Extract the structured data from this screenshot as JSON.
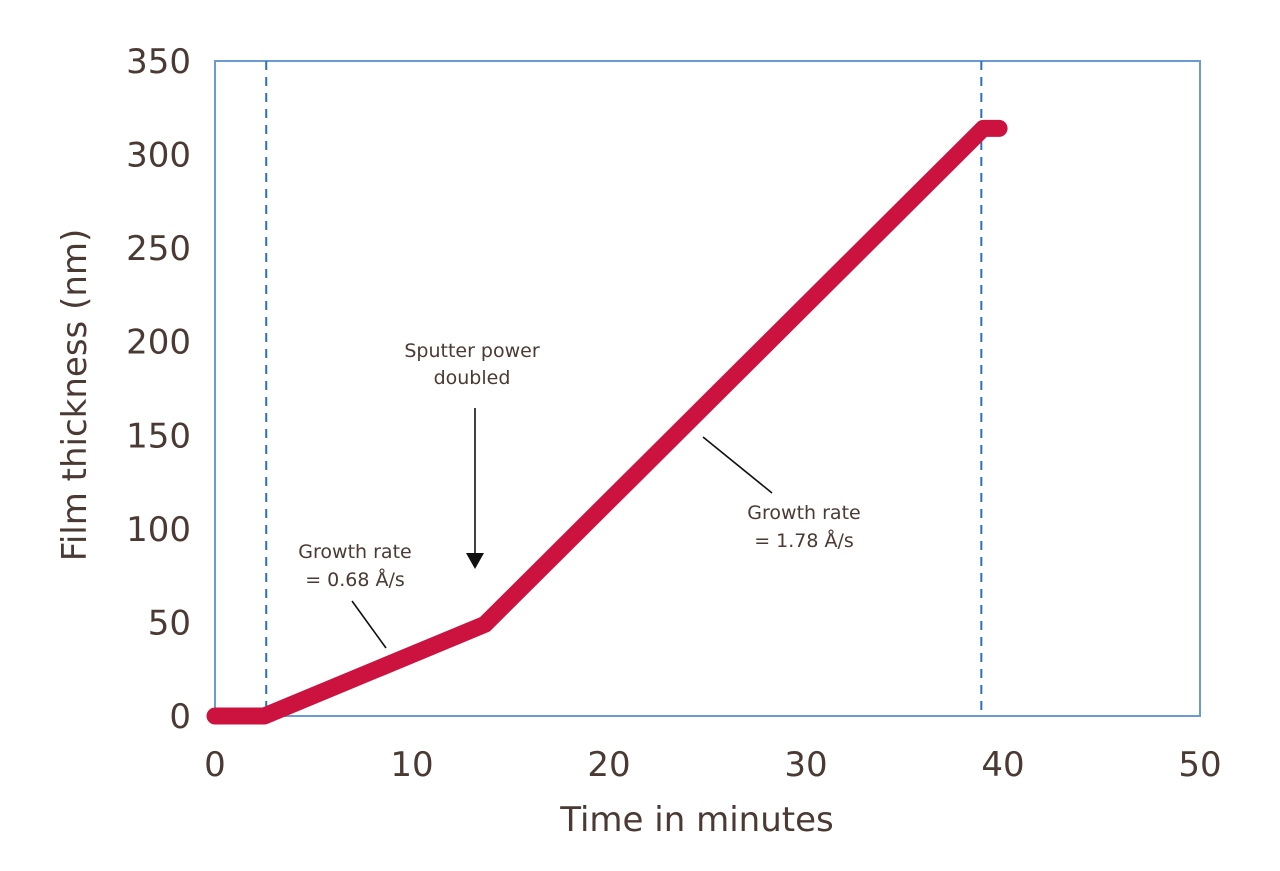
{
  "chart_data": {
    "type": "line",
    "title": "",
    "xlabel": "Time in minutes",
    "ylabel": "Film thickness (nm)",
    "xlim": [
      0,
      50
    ],
    "ylim": [
      0,
      350
    ],
    "xticks": [
      "0",
      "10",
      "20",
      "30",
      "40",
      "50"
    ],
    "yticks": [
      "0",
      "50",
      "100",
      "150",
      "200",
      "250",
      "300",
      "350"
    ],
    "grid": false,
    "legend": "none",
    "series": [
      {
        "color": "#cc1340",
        "x": [
          0,
          2.5,
          13.7,
          39,
          39.8
        ],
        "y": [
          0,
          0,
          49,
          314,
          314
        ]
      }
    ],
    "reference_lines_x": [
      2.6,
      38.9
    ],
    "annotations": [
      {
        "lines": [
          "Sputter power",
          "doubled"
        ]
      },
      {
        "lines": [
          "Growth rate",
          "= 0.68 Å/s"
        ]
      },
      {
        "lines": [
          "Growth rate",
          "= 1.78 Å/s"
        ]
      }
    ],
    "colors": {
      "line": "#cc1340",
      "frame": "#6b9bd1",
      "text": "#4a3a33",
      "reference": "#2c6fbd"
    }
  }
}
